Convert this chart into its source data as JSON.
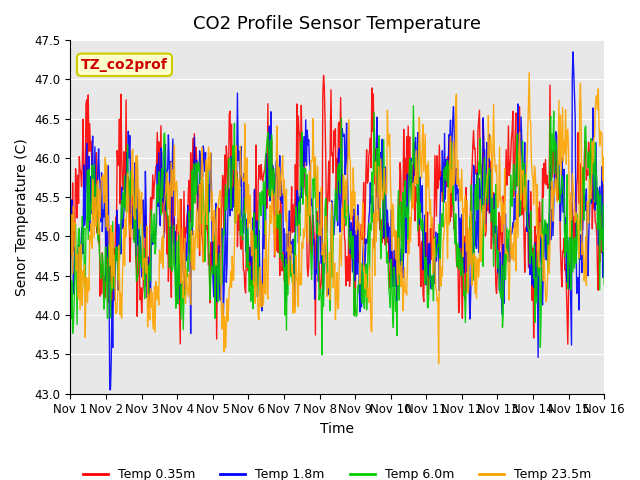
{
  "title": "CO2 Profile Sensor Temperature",
  "ylabel": "Senor Temperature (C)",
  "xlabel": "Time",
  "ylim": [
    43.0,
    47.5
  ],
  "yticks": [
    43.0,
    43.5,
    44.0,
    44.5,
    45.0,
    45.5,
    46.0,
    46.5,
    47.0,
    47.5
  ],
  "xtick_labels": [
    "Nov 1",
    "Nov 2",
    "Nov 3",
    "Nov 4",
    "Nov 5",
    "Nov 6",
    "Nov 7",
    "Nov 8",
    "Nov 9",
    "Nov 10",
    "Nov 11",
    "Nov 12",
    "Nov 13",
    "Nov 14",
    "Nov 15",
    "Nov 16"
  ],
  "series": [
    {
      "label": "Temp 0.35m",
      "color": "#ff0000"
    },
    {
      "label": "Temp 1.8m",
      "color": "#0000ff"
    },
    {
      "label": "Temp 6.0m",
      "color": "#00cc00"
    },
    {
      "label": "Temp 23.5m",
      "color": "#ffa500"
    }
  ],
  "annotation_text": "TZ_co2prof",
  "annotation_color": "#cc0000",
  "annotation_bg": "#ffffcc",
  "annotation_border": "#cccc00",
  "plot_bg": "#e8e8e8",
  "title_fontsize": 13,
  "axis_fontsize": 10,
  "tick_fontsize": 8.5,
  "legend_fontsize": 9,
  "linewidth": 1.0,
  "n_days": 15,
  "points_per_day": 48
}
